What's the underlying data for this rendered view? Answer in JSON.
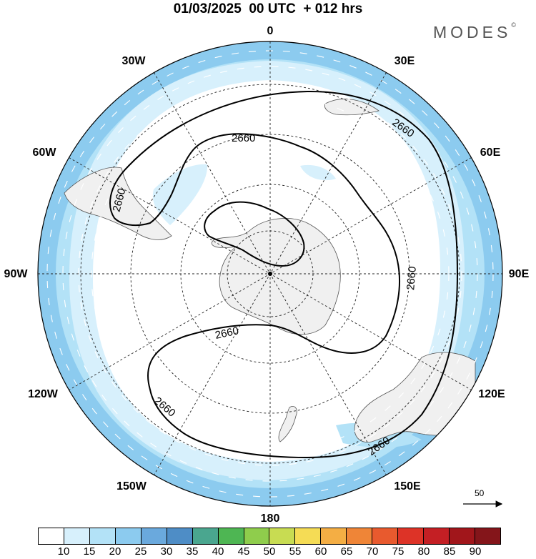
{
  "title": "01/03/2025  00 UTC  + 012 hrs",
  "brand": {
    "name": "MODES",
    "mark": "©"
  },
  "map": {
    "projection": "south polar stereographic",
    "contour_label": "2660",
    "contour_color": "#000000",
    "land_color": "#f0f0f0",
    "longitude_labels": [
      "0",
      "30E",
      "60E",
      "90E",
      "120E",
      "150E",
      "180",
      "150W",
      "120W",
      "90W",
      "60W",
      "30W"
    ]
  },
  "wind_vector_scale": {
    "label": "50"
  },
  "colorbar": {
    "colors": [
      "#ffffff",
      "#d7f0fc",
      "#b3e2f7",
      "#8ccbef",
      "#6aa9dd",
      "#4e8dc6",
      "#4aa68f",
      "#4eb653",
      "#8fcd4c",
      "#c8dc52",
      "#f5dc55",
      "#f4ae44",
      "#ef8537",
      "#e85a2e",
      "#dd3327",
      "#c41f24",
      "#a1161b",
      "#84151a"
    ],
    "ticks": [
      "10",
      "15",
      "20",
      "25",
      "30",
      "35",
      "40",
      "45",
      "50",
      "55",
      "60",
      "65",
      "70",
      "75",
      "80",
      "85",
      "90"
    ]
  }
}
